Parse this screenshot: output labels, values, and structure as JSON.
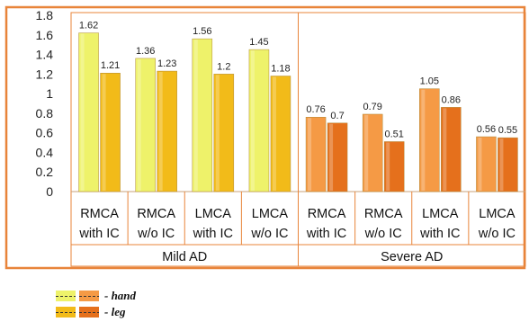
{
  "chart_data": {
    "type": "bar",
    "yticks": [
      "0",
      "0.2",
      "0.4",
      "0.6",
      "0.8",
      "1",
      "1.2",
      "1.4",
      "1.6",
      "1.8"
    ],
    "ylim": [
      0,
      1.8
    ],
    "categories": [
      [
        "RMCA",
        "with IC"
      ],
      [
        "RMCA",
        "w/o IC"
      ],
      [
        "LMCA",
        "with IC"
      ],
      [
        "LMCA",
        "w/o IC"
      ],
      [
        "RMCA",
        "with IC"
      ],
      [
        "RMCA",
        "w/o IC"
      ],
      [
        "LMCA",
        "with IC"
      ],
      [
        "LMCA",
        "w/o IC"
      ]
    ],
    "groups": [
      {
        "label": "Mild AD",
        "span": [
          0,
          3
        ]
      },
      {
        "label": "Severe AD",
        "span": [
          4,
          7
        ]
      }
    ],
    "series": [
      {
        "name": "- hand",
        "values": [
          1.62,
          1.36,
          1.56,
          1.45,
          0.76,
          0.79,
          1.05,
          0.56
        ],
        "value_labels": [
          "1.62",
          "1.36",
          "1.56",
          "1.45",
          "0.76",
          "0.79",
          "1.05",
          "0.56"
        ]
      },
      {
        "name": "- leg",
        "values": [
          1.21,
          1.23,
          1.2,
          1.18,
          0.7,
          0.51,
          0.86,
          0.55
        ],
        "value_labels": [
          "1.21",
          "1.23",
          "1.2",
          "1.18",
          "0.7",
          "0.51",
          "0.86",
          "0.55"
        ]
      }
    ],
    "colors": {
      "mild_hand": "#eef26a",
      "mild_leg": "#f2bb19",
      "severe_hand": "#f59a45",
      "severe_leg": "#e5701c",
      "frame": "#e8843a"
    },
    "legend_position": "bottom-left"
  }
}
